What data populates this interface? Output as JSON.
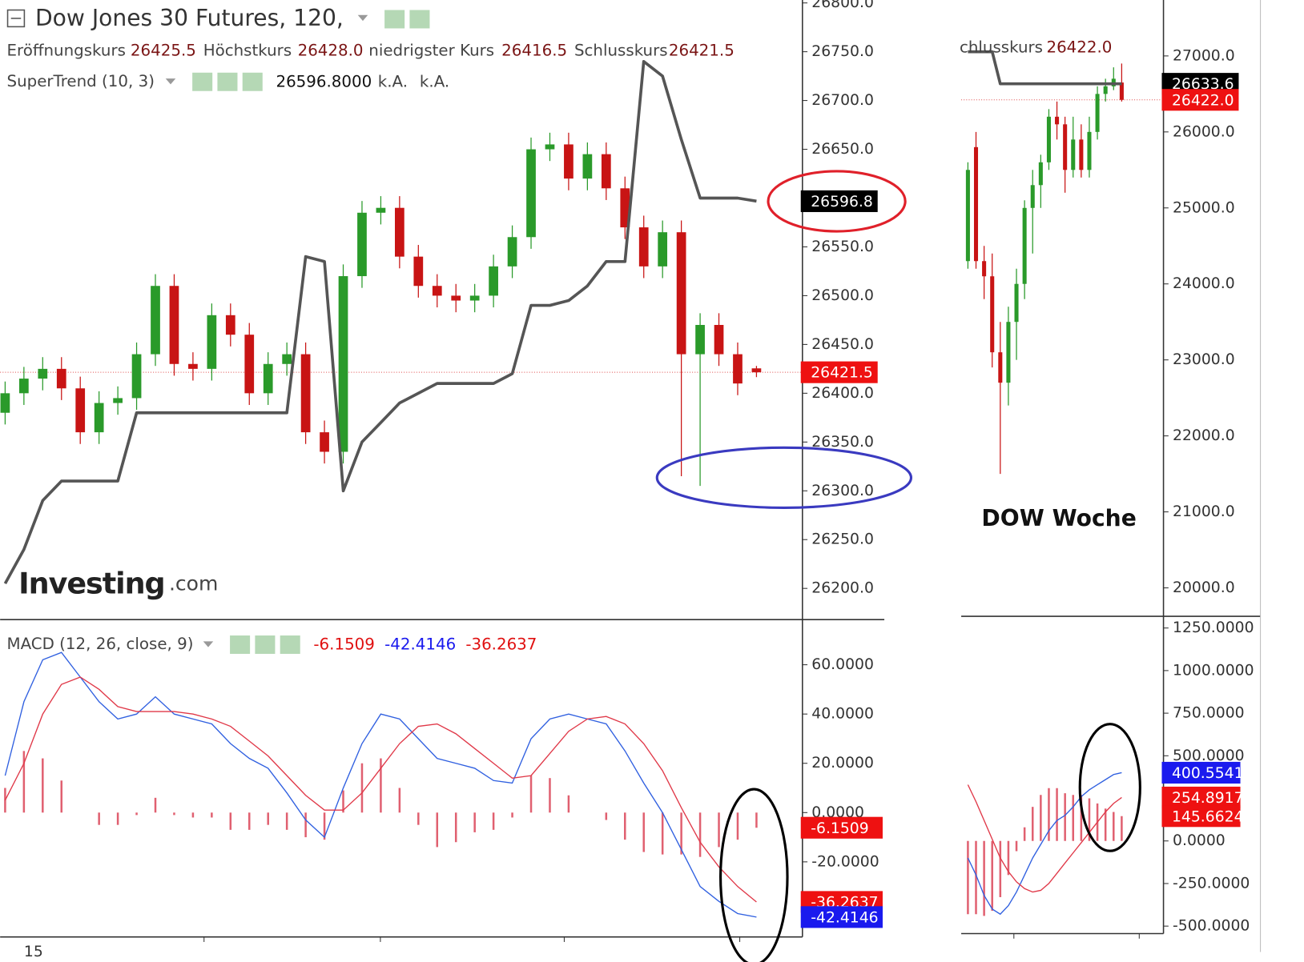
{
  "header": {
    "title": "Dow Jones 30 Futures, 120,",
    "ohlc": [
      {
        "label": "Eröffnungskurs",
        "value": "26425.5"
      },
      {
        "label": "Höchstkurs",
        "value": "26428.0"
      },
      {
        "label": "niedrigster Kurs",
        "value": "26416.5"
      },
      {
        "label": "Schlusskurs",
        "value": "26421.5"
      }
    ],
    "indicator": {
      "name": "SuperTrend (10, 3)",
      "values": [
        "26596.8000",
        "k.A.",
        "k.A."
      ]
    },
    "macd_legend": {
      "name": "MACD (12, 26, close, 9)",
      "values": [
        "-6.1509",
        "-42.4146",
        "-36.2637"
      ]
    },
    "weekly_ohlc": {
      "label": "chlusskurs",
      "value": "26422.0"
    },
    "weekly_title": "DOW Woche",
    "logo": {
      "brand": "Investing",
      "suffix": ".com"
    },
    "x_label": "15"
  },
  "chart_data": [
    {
      "type": "candlestick",
      "up_color": "#2a9a2a",
      "down_color": "#c81414",
      "open": [
        26380,
        26400,
        26415,
        26425,
        26405,
        26360,
        26390,
        26395,
        26440,
        26510,
        26430,
        26425,
        26480,
        26460,
        26400,
        26430,
        26440,
        26360,
        26340,
        26520,
        26585,
        26590,
        26540,
        26510,
        26500,
        26495,
        26500,
        26530,
        26560,
        26650,
        26655,
        26620,
        26645,
        26610,
        26570,
        26530,
        26565,
        26440,
        26470,
        26440,
        26425.5
      ],
      "high": [
        26412,
        26427,
        26437,
        26437,
        26417,
        26402,
        26407,
        26452,
        26522,
        26522,
        26442,
        26492,
        26492,
        26472,
        26442,
        26452,
        26452,
        26372,
        26532,
        26597,
        26602,
        26602,
        26552,
        26522,
        26512,
        26512,
        26542,
        26572,
        26662,
        26667,
        26667,
        26657,
        26657,
        26622,
        26582,
        26577,
        26577,
        26482,
        26482,
        26452,
        26428
      ],
      "low": [
        26368,
        26388,
        26403,
        26393,
        26348,
        26348,
        26378,
        26383,
        26428,
        26418,
        26413,
        26413,
        26448,
        26388,
        26388,
        26418,
        26348,
        26328,
        26328,
        26508,
        26573,
        26528,
        26498,
        26488,
        26483,
        26483,
        26488,
        26518,
        26548,
        26638,
        26608,
        26608,
        26598,
        26558,
        26518,
        26518,
        26315,
        26305,
        26428,
        26398,
        26416.5
      ],
      "close": [
        26400,
        26415,
        26425,
        26405,
        26360,
        26390,
        26395,
        26440,
        26510,
        26430,
        26425,
        26480,
        26460,
        26400,
        26430,
        26440,
        26360,
        26340,
        26520,
        26585,
        26590,
        26540,
        26510,
        26500,
        26495,
        26500,
        26530,
        26560,
        26650,
        26655,
        26620,
        26645,
        26610,
        26570,
        26530,
        26565,
        26440,
        26470,
        26440,
        26410,
        26421.5
      ],
      "series": [
        {
          "name": "SuperTrend",
          "color": "#555555",
          "values": [
            26205,
            26240,
            26290,
            26310,
            26310,
            26310,
            26310,
            26380,
            26380,
            26380,
            26380,
            26380,
            26380,
            26380,
            26380,
            26380,
            26540,
            26535,
            26300,
            26350,
            26370,
            26390,
            26400,
            26410,
            26410,
            26410,
            26410,
            26420,
            26490,
            26490,
            26495,
            26510,
            26535,
            26535,
            26740,
            26725,
            26660,
            26600,
            26600,
            26600,
            26596.8
          ]
        }
      ],
      "ylim": [
        26168,
        26803
      ],
      "yticks": [
        {
          "value": 26800,
          "label": "26800.0"
        },
        {
          "value": 26750,
          "label": "26750.0"
        },
        {
          "value": 26700,
          "label": "26700.0"
        },
        {
          "value": 26650,
          "label": "26650.0"
        },
        {
          "value": 26600,
          "label": "26600.0"
        },
        {
          "value": 26550,
          "label": "26550.0"
        },
        {
          "value": 26500,
          "label": "26500.0"
        },
        {
          "value": 26450,
          "label": "26450.0"
        },
        {
          "value": 26400,
          "label": "26400.0"
        },
        {
          "value": 26350,
          "label": "26350.0"
        },
        {
          "value": 26300,
          "label": "26300.0"
        },
        {
          "value": 26250,
          "label": "26250.0"
        },
        {
          "value": 26200,
          "label": "26200.0"
        }
      ],
      "last_price_line": true,
      "price_tags": [
        {
          "value": 26596.8,
          "label": "26596.8",
          "color": "#000000"
        },
        {
          "value": 26421.5,
          "label": "26421.5",
          "color": "#ee1111"
        }
      ]
    },
    {
      "type": "macd",
      "series": [
        {
          "name": "Histogram",
          "color": "#e06070",
          "style": "bar",
          "values": [
            10,
            25,
            22,
            13,
            0,
            -5,
            -5,
            -1,
            6,
            -1,
            -2,
            -2,
            -7,
            -7,
            -5,
            -7,
            -10,
            -11,
            9,
            20,
            22,
            10,
            -5,
            -14,
            -12,
            -8,
            -7,
            -2,
            15,
            14,
            7,
            0,
            -3,
            -11,
            -16,
            -17,
            -17,
            -18,
            -14,
            -11,
            -6.1509
          ]
        },
        {
          "name": "MACD",
          "color": "#3060e0",
          "style": "line",
          "values": [
            15,
            45,
            62,
            65,
            55,
            45,
            38,
            40,
            47,
            40,
            38,
            36,
            28,
            22,
            18,
            8,
            -3,
            -10,
            10,
            28,
            40,
            38,
            30,
            22,
            20,
            18,
            13,
            12,
            30,
            38,
            40,
            38,
            36,
            25,
            12,
            0,
            -15,
            -30,
            -36,
            -41,
            -42.4146
          ]
        },
        {
          "name": "Signal",
          "color": "#e03848",
          "style": "line",
          "values": [
            5,
            20,
            40,
            52,
            55,
            50,
            43,
            41,
            41,
            41,
            40,
            38,
            35,
            29,
            23,
            15,
            7,
            1,
            1,
            8,
            18,
            28,
            35,
            36,
            32,
            26,
            20,
            14,
            15,
            24,
            33,
            38,
            39,
            36,
            28,
            17,
            2,
            -12,
            -22,
            -30,
            -36.2637
          ]
        }
      ],
      "ylim": [
        -49.8,
        77.3
      ],
      "yticks": [
        {
          "value": 60,
          "label": "60.0000"
        },
        {
          "value": 40,
          "label": "40.0000"
        },
        {
          "value": 20,
          "label": "20.0000"
        },
        {
          "value": 0,
          "label": "0.0000"
        },
        {
          "value": -20,
          "label": "-20.0000"
        }
      ],
      "price_tags": [
        {
          "value": -6.1509,
          "label": "-6.1509",
          "color": "#ee1111"
        },
        {
          "value": -36.2637,
          "label": "-36.2637",
          "color": "#ee1111"
        },
        {
          "value": -42.4146,
          "label": "-42.4146",
          "color": "#1a1aee"
        }
      ]
    },
    {
      "type": "candlestick",
      "up_color": "#2a9a2a",
      "down_color": "#c81414",
      "open": [
        24300,
        25800,
        24300,
        24100,
        23100,
        22700,
        23500,
        24000,
        25000,
        25300,
        25600,
        26200,
        26100,
        25500,
        25900,
        25500,
        26000,
        26500,
        26600,
        26650
      ],
      "high": [
        25600,
        26000,
        24500,
        24400,
        23500,
        23700,
        24200,
        25100,
        25500,
        25700,
        26300,
        26400,
        26200,
        26200,
        26100,
        26200,
        26600,
        26700,
        26850,
        26900
      ],
      "low": [
        24200,
        24200,
        23800,
        22900,
        21500,
        22400,
        23000,
        23800,
        24400,
        25000,
        25500,
        25900,
        25200,
        25400,
        25400,
        25400,
        25900,
        26400,
        26550,
        26400
      ],
      "close": [
        25500,
        24300,
        24100,
        23100,
        22700,
        23500,
        24000,
        25000,
        25300,
        25600,
        26200,
        26100,
        25500,
        25900,
        25500,
        26000,
        26500,
        26600,
        26700,
        26422
      ],
      "series": [
        {
          "name": "SuperTrend",
          "color": "#555555",
          "values": [
            27055,
            27055,
            27055,
            27055,
            26633.6,
            26633.6,
            26633.6,
            26633.6,
            26633.6,
            26633.6,
            26633.6,
            26633.6,
            26633.6,
            26633.6,
            26633.6,
            26633.6,
            26633.6,
            26633.6,
            26633.6,
            26633.6
          ]
        }
      ],
      "ylim": [
        19626,
        27736
      ],
      "yticks": [
        {
          "value": 27000,
          "label": "27000.0"
        },
        {
          "value": 26000,
          "label": "26000.0"
        },
        {
          "value": 25000,
          "label": "25000.0"
        },
        {
          "value": 24000,
          "label": "24000.0"
        },
        {
          "value": 23000,
          "label": "23000.0"
        },
        {
          "value": 22000,
          "label": "22000.0"
        },
        {
          "value": 21000,
          "label": "21000.0"
        },
        {
          "value": 20000,
          "label": "20000.0"
        }
      ],
      "last_price_line": true,
      "price_tags": [
        {
          "value": 26633.6,
          "label": "26633.6",
          "color": "#000000"
        },
        {
          "value": 26422,
          "label": "26422.0",
          "color": "#ee1111"
        }
      ]
    },
    {
      "type": "macd",
      "series": [
        {
          "name": "Histogram",
          "color": "#e06070",
          "style": "bar",
          "values": [
            -430,
            -430,
            -440,
            -410,
            -330,
            -200,
            -60,
            80,
            200,
            270,
            310,
            310,
            280,
            270,
            270,
            250,
            220,
            190,
            170,
            145.6624
          ]
        },
        {
          "name": "MACD",
          "color": "#3060e0",
          "style": "line",
          "values": [
            -100,
            -200,
            -320,
            -400,
            -430,
            -380,
            -300,
            -200,
            -100,
            -20,
            60,
            120,
            150,
            200,
            260,
            300,
            330,
            360,
            390,
            400.5541
          ]
        },
        {
          "name": "Signal",
          "color": "#e03848",
          "style": "line",
          "values": [
            330,
            230,
            120,
            10,
            -100,
            -180,
            -240,
            -280,
            -300,
            -290,
            -250,
            -190,
            -130,
            -70,
            -10,
            50,
            110,
            170,
            220,
            254.8917
          ]
        }
      ],
      "ylim": [
        -544,
        1309
      ],
      "yticks": [
        {
          "value": 1250,
          "label": "1250.0000"
        },
        {
          "value": 1000,
          "label": "1000.0000"
        },
        {
          "value": 750,
          "label": "750.0000"
        },
        {
          "value": 500,
          "label": "500.0000"
        },
        {
          "value": 0,
          "label": "0.0000"
        },
        {
          "value": -250,
          "label": "-250.0000"
        },
        {
          "value": -500,
          "label": "-500.0000"
        }
      ],
      "price_tags": [
        {
          "value": 400.5541,
          "label": "400.5541",
          "color": "#1a1aee"
        },
        {
          "value": 254.8917,
          "label": "254.8917",
          "color": "#ee1111"
        },
        {
          "value": 145.6624,
          "label": "145.6624",
          "color": "#ee1111"
        }
      ]
    }
  ]
}
